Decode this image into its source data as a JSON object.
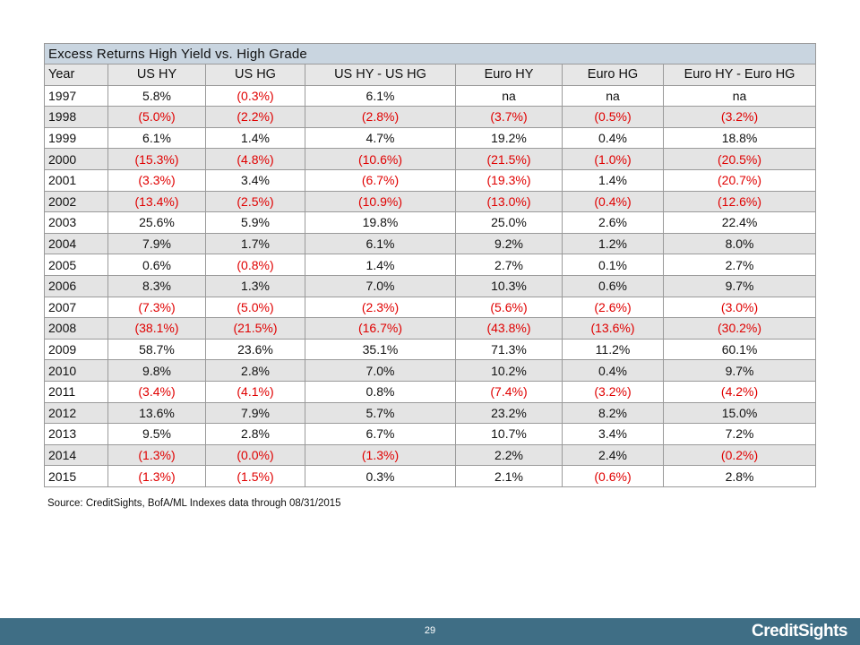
{
  "title": "Excess Returns High Yield vs. High Grade",
  "headers": [
    "Year",
    "US HY",
    "US HG",
    "US HY - US HG",
    "Euro HY",
    "Euro HG",
    "Euro HY - Euro HG"
  ],
  "rows": [
    {
      "year": "1997",
      "values": [
        "5.8%",
        "(0.3%)",
        "6.1%",
        "na",
        "na",
        "na"
      ]
    },
    {
      "year": "1998",
      "values": [
        "(5.0%)",
        "(2.2%)",
        "(2.8%)",
        "(3.7%)",
        "(0.5%)",
        "(3.2%)"
      ]
    },
    {
      "year": "1999",
      "values": [
        "6.1%",
        "1.4%",
        "4.7%",
        "19.2%",
        "0.4%",
        "18.8%"
      ]
    },
    {
      "year": "2000",
      "values": [
        "(15.3%)",
        "(4.8%)",
        "(10.6%)",
        "(21.5%)",
        "(1.0%)",
        "(20.5%)"
      ]
    },
    {
      "year": "2001",
      "values": [
        "(3.3%)",
        "3.4%",
        "(6.7%)",
        "(19.3%)",
        "1.4%",
        "(20.7%)"
      ]
    },
    {
      "year": "2002",
      "values": [
        "(13.4%)",
        "(2.5%)",
        "(10.9%)",
        "(13.0%)",
        "(0.4%)",
        "(12.6%)"
      ]
    },
    {
      "year": "2003",
      "values": [
        "25.6%",
        "5.9%",
        "19.8%",
        "25.0%",
        "2.6%",
        "22.4%"
      ]
    },
    {
      "year": "2004",
      "values": [
        "7.9%",
        "1.7%",
        "6.1%",
        "9.2%",
        "1.2%",
        "8.0%"
      ]
    },
    {
      "year": "2005",
      "values": [
        "0.6%",
        "(0.8%)",
        "1.4%",
        "2.7%",
        "0.1%",
        "2.7%"
      ]
    },
    {
      "year": "2006",
      "values": [
        "8.3%",
        "1.3%",
        "7.0%",
        "10.3%",
        "0.6%",
        "9.7%"
      ]
    },
    {
      "year": "2007",
      "values": [
        "(7.3%)",
        "(5.0%)",
        "(2.3%)",
        "(5.6%)",
        "(2.6%)",
        "(3.0%)"
      ]
    },
    {
      "year": "2008",
      "values": [
        "(38.1%)",
        "(21.5%)",
        "(16.7%)",
        "(43.8%)",
        "(13.6%)",
        "(30.2%)"
      ]
    },
    {
      "year": "2009",
      "values": [
        "58.7%",
        "23.6%",
        "35.1%",
        "71.3%",
        "11.2%",
        "60.1%"
      ]
    },
    {
      "year": "2010",
      "values": [
        "9.8%",
        "2.8%",
        "7.0%",
        "10.2%",
        "0.4%",
        "9.7%"
      ]
    },
    {
      "year": "2011",
      "values": [
        "(3.4%)",
        "(4.1%)",
        "0.8%",
        "(7.4%)",
        "(3.2%)",
        "(4.2%)"
      ]
    },
    {
      "year": "2012",
      "values": [
        "13.6%",
        "7.9%",
        "5.7%",
        "23.2%",
        "8.2%",
        "15.0%"
      ]
    },
    {
      "year": "2013",
      "values": [
        "9.5%",
        "2.8%",
        "6.7%",
        "10.7%",
        "3.4%",
        "7.2%"
      ]
    },
    {
      "year": "2014",
      "values": [
        "(1.3%)",
        "(0.0%)",
        "(1.3%)",
        "2.2%",
        "2.4%",
        "(0.2%)"
      ]
    },
    {
      "year": "2015",
      "values": [
        "(1.3%)",
        "(1.5%)",
        "0.3%",
        "2.1%",
        "(0.6%)",
        "2.8%"
      ]
    }
  ],
  "source": "Source: CreditSights, BofA/ML Indexes  data through 08/31/2015",
  "page_number": "29",
  "brand": "CreditSights",
  "colors": {
    "negative": "#e00000",
    "title_bg": "#c9d5e0",
    "header_bg": "#e7e7e7",
    "alt_row_bg": "#e4e4e4",
    "footer_bg": "#3f6e85"
  }
}
